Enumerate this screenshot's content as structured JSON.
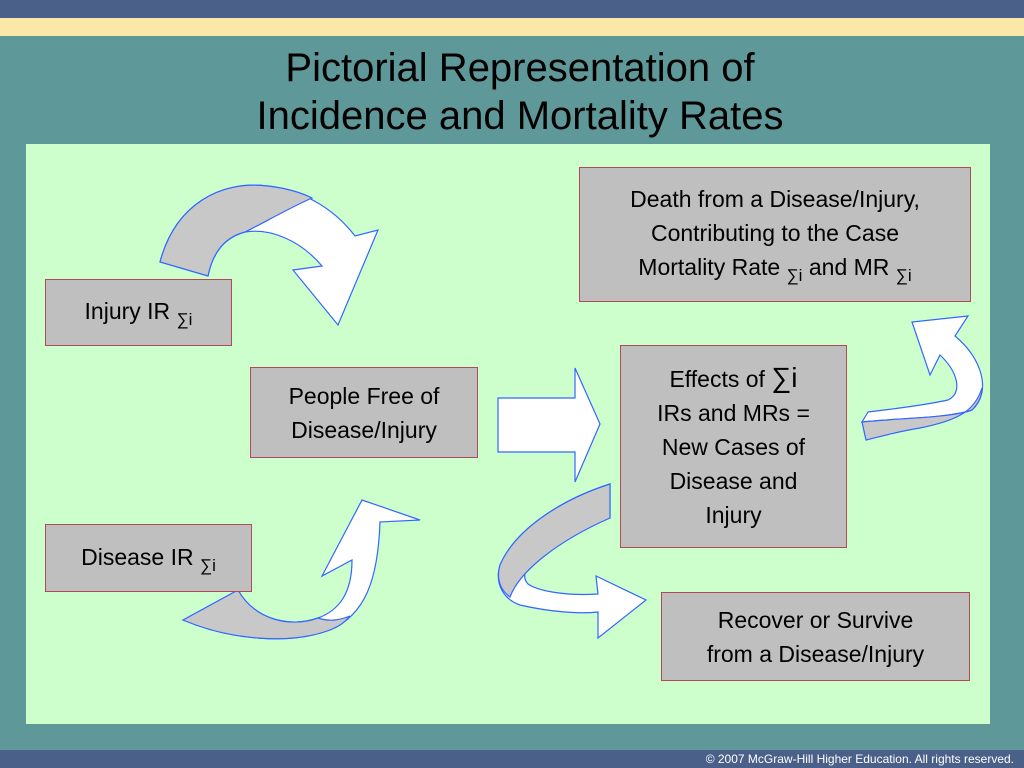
{
  "slide": {
    "title_line1": "Pictorial Representation of",
    "title_line2": "Incidence and Mortality Rates",
    "footer": "© 2007 McGraw-Hill Higher Education. All rights reserved."
  },
  "colors": {
    "top_bar": "#4a6088",
    "stripe": "#fbe8a8",
    "background": "#5f9898",
    "panel": "#ccffcc",
    "box_fill": "#bfbfbf",
    "box_border": "#b2495b",
    "arrow_stroke": "#3366ff",
    "arrow_white": "#ffffff",
    "arrow_gray": "#c8c8c8"
  },
  "symbols": {
    "sigma_i": "∑i"
  },
  "diagram": {
    "injury_ir": {
      "label": "Injury IR"
    },
    "disease_ir": {
      "label": "Disease IR"
    },
    "people_free": {
      "line1": "People Free of",
      "line2": "Disease/Injury"
    },
    "effects": {
      "line1_prefix": "Effects of",
      "line2": "IRs and MRs =",
      "line3": "New Cases of",
      "line4": "Disease and",
      "line5": "Injury"
    },
    "death": {
      "line1": "Death from a Disease/Injury,",
      "line2": "Contributing to the Case",
      "line3_prefix": "Mortality Rate",
      "line3_middle": "and MR"
    },
    "recover": {
      "line1": "Recover or Survive",
      "line2": "from a Disease/Injury"
    }
  }
}
